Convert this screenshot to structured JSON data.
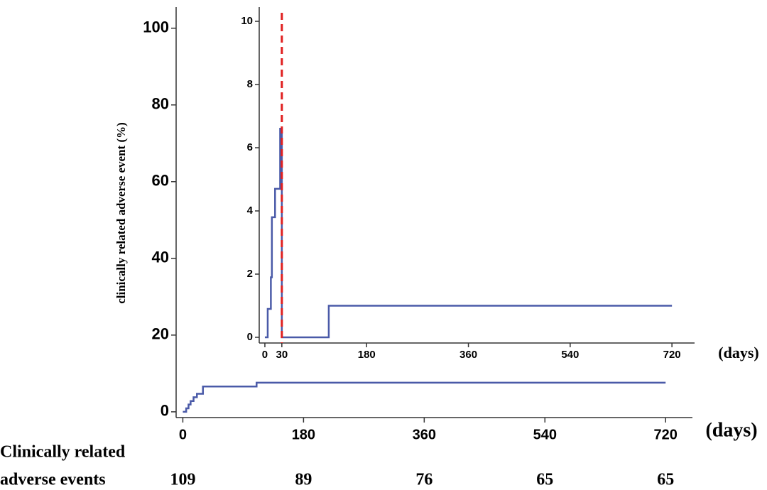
{
  "chart_data": [
    {
      "type": "line",
      "ylabel": "clinically related adverse event (%)",
      "xlabel": "(days)",
      "xlim": [
        -10,
        760
      ],
      "xticks": [
        0,
        180,
        360,
        540,
        720
      ],
      "ylim": [
        -1.5,
        105.5
      ],
      "yticks": [
        0,
        20,
        40,
        60,
        80,
        100
      ],
      "series": [
        {
          "color": "#4a5aa8",
          "x": [
            0,
            5,
            5,
            8.5,
            8.5,
            11.6,
            11.6,
            16,
            16,
            21,
            21,
            30,
            30,
            110,
            110,
            720
          ],
          "values": [
            0,
            0,
            0.9,
            0.9,
            1.9,
            1.9,
            2.8,
            2.8,
            3.8,
            3.8,
            4.7,
            4.7,
            6.6,
            6.6,
            7.6,
            7.6
          ]
        }
      ],
      "risk_table": {
        "label": [
          "Clinically related",
          "adverse events"
        ],
        "values": [
          109,
          89,
          76,
          65,
          65
        ]
      }
    },
    {
      "type": "line",
      "xlabel": "(days)",
      "xlim": [
        -10,
        760
      ],
      "xticks": [
        0,
        30,
        180,
        360,
        540,
        720
      ],
      "ylim": [
        -0.18,
        10.45
      ],
      "yticks": [
        0,
        2,
        4,
        6,
        8,
        10
      ],
      "reference_line": {
        "x": 30,
        "color": "#e02020"
      },
      "series": [
        {
          "color": "#4a5aa8",
          "x": [
            0,
            5,
            5,
            10.6,
            10.6,
            12.4,
            12.4,
            18,
            18,
            27,
            27,
            30,
            30,
            113,
            113,
            720
          ],
          "values": [
            0,
            0,
            0.9,
            0.9,
            1.9,
            1.9,
            3.8,
            3.8,
            4.7,
            4.7,
            6.6,
            6.6,
            0,
            0,
            1,
            1
          ]
        }
      ]
    }
  ]
}
